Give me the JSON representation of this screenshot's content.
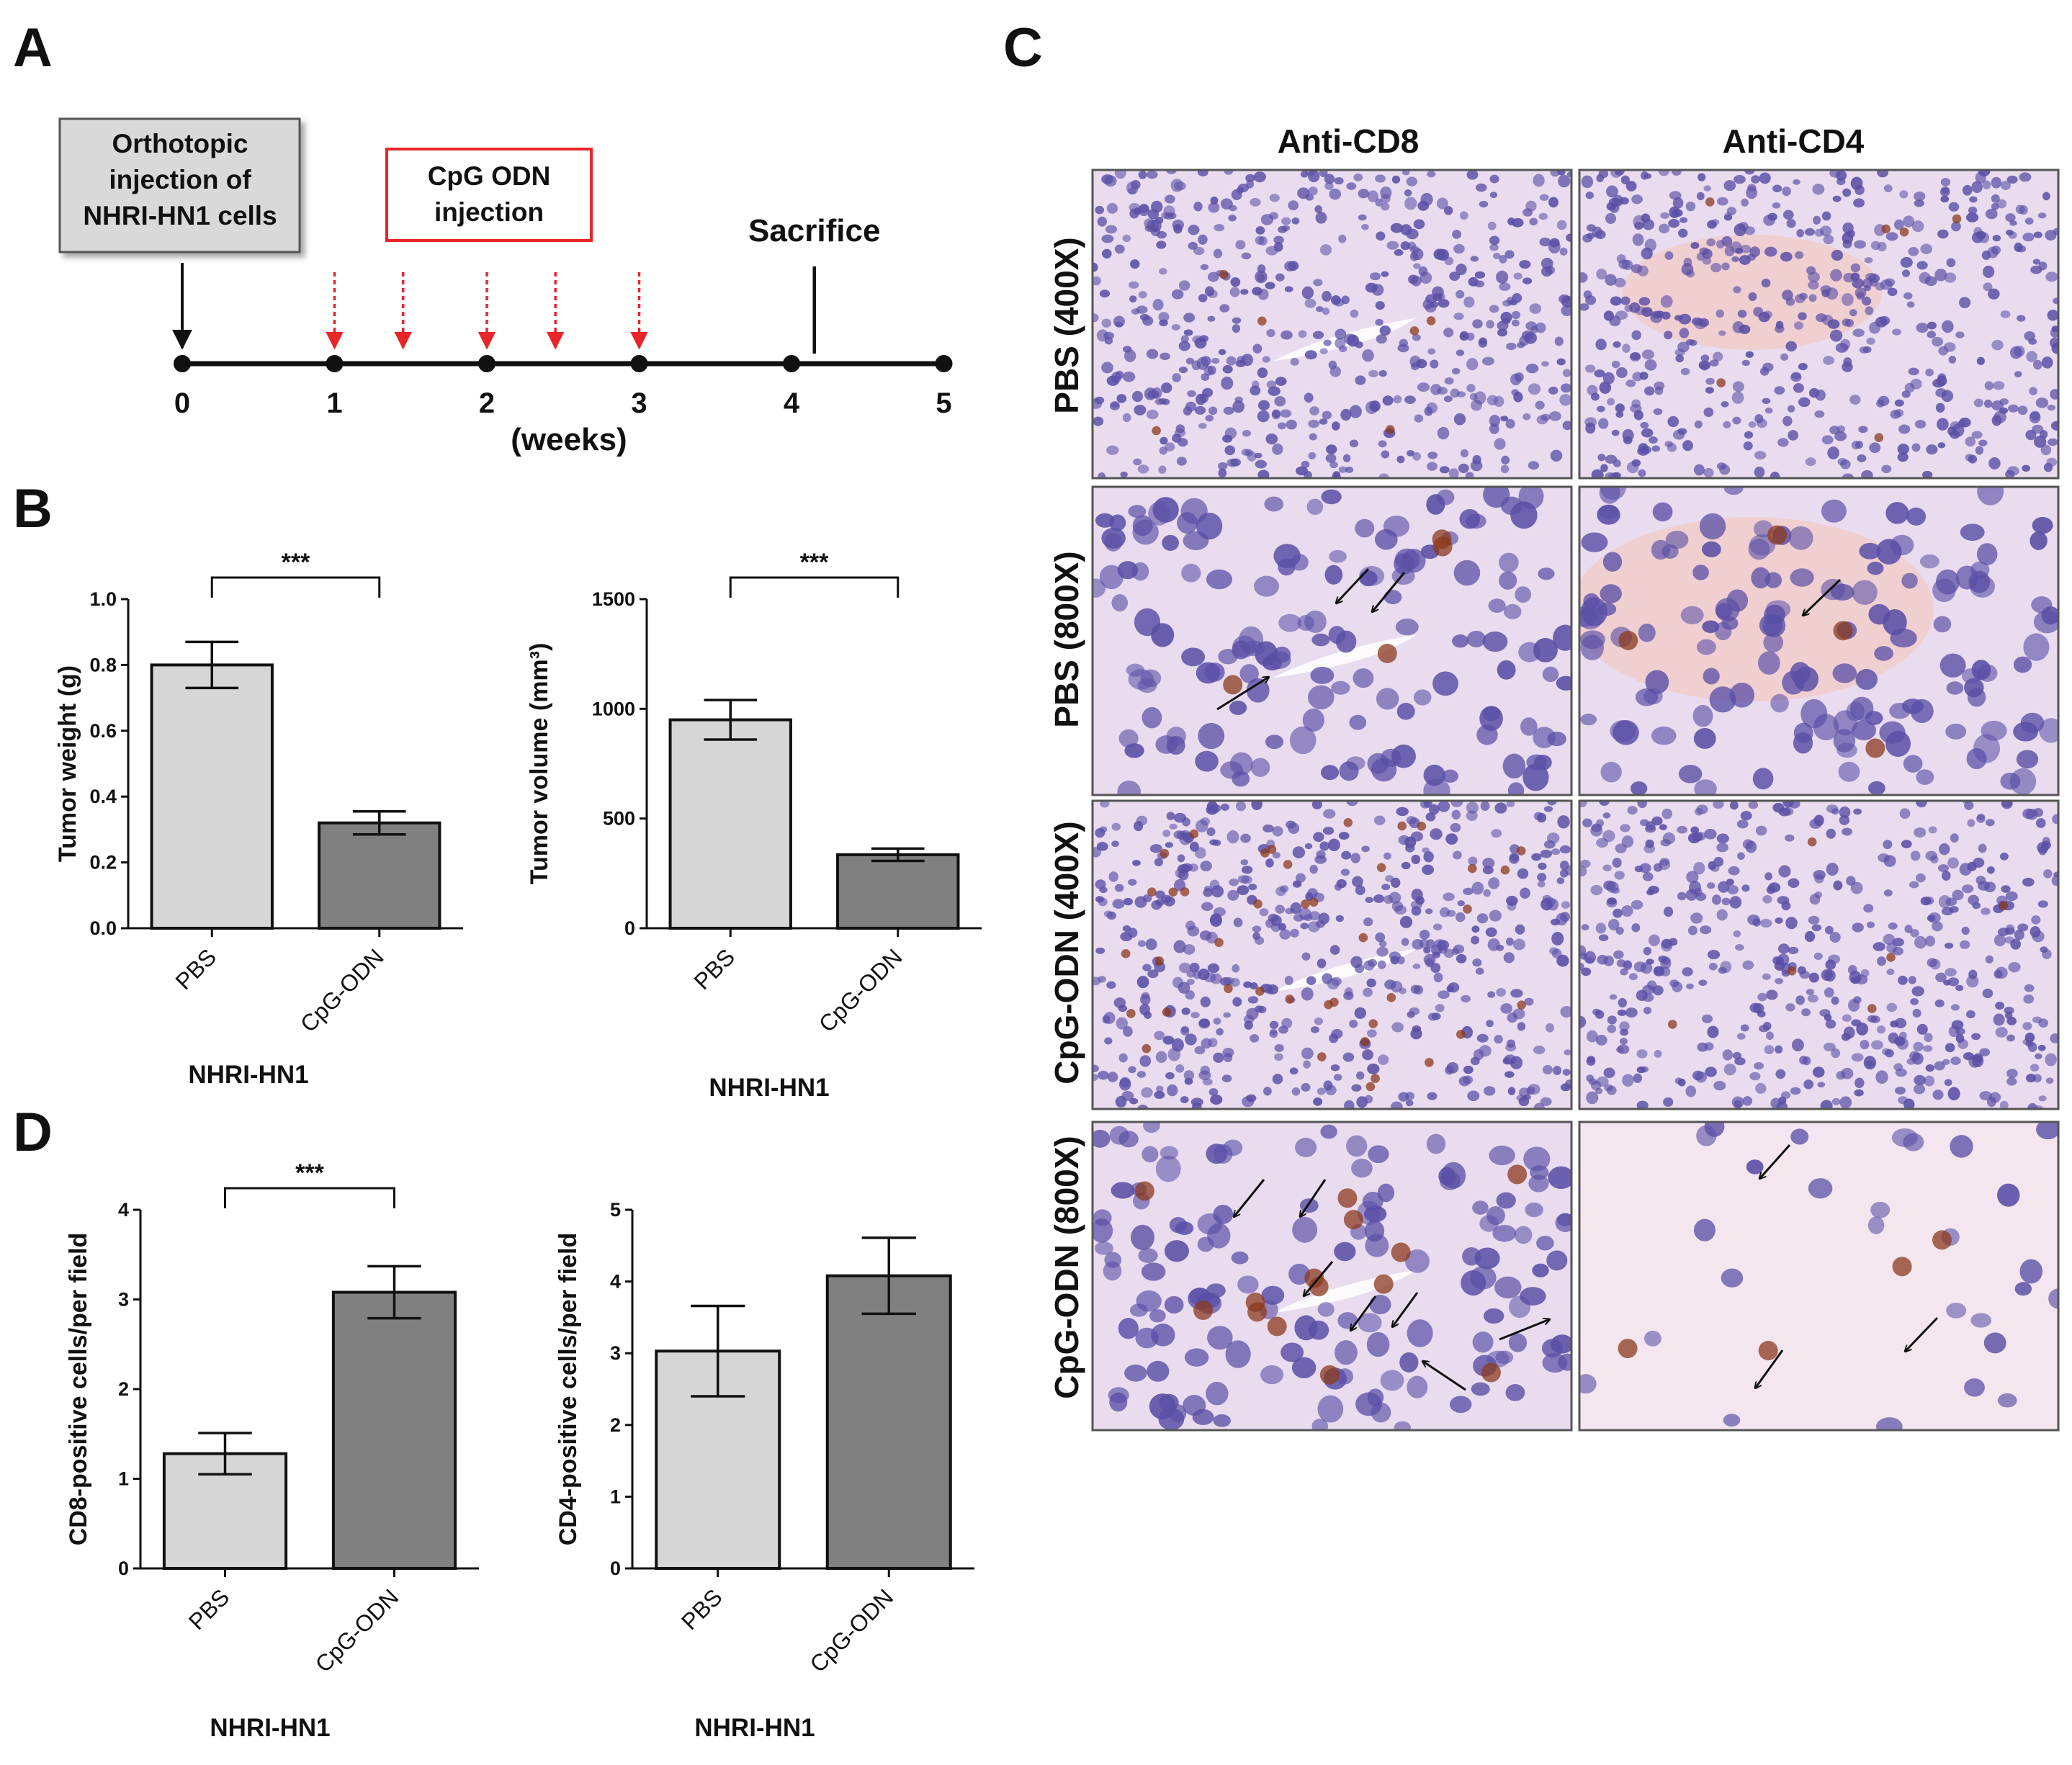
{
  "panels": {
    "A": {
      "letter": "A",
      "boxes": {
        "orthotopic": [
          "Orthotopic",
          "injection of",
          "NHRI-HN1 cells"
        ],
        "cpg": [
          "CpG ODN",
          "injection"
        ]
      },
      "sacrifice_label": "Sacrifice",
      "axis_label": "(weeks)",
      "ticks": [
        "0",
        "1",
        "2",
        "3",
        "4",
        "5"
      ],
      "tumor_injection_week": 0,
      "cpg_injection_weeks": [
        1,
        1.45,
        2,
        2.45,
        3
      ],
      "sacrifice_week": 4.15,
      "colors": {
        "cpg_arrow": "#e8262a",
        "cpg_box_border": "#e8262a",
        "box_fill": "#d9d9d9"
      }
    },
    "B": {
      "letter": "B"
    },
    "C": {
      "letter": "C",
      "columns": [
        "Anti-CD8",
        "Anti-CD4"
      ],
      "rows": [
        "PBS (400X)",
        "PBS (800X)",
        "CpG-ODN (400X)",
        "CpG-ODN (800X)"
      ],
      "colors": {
        "tissue_bg": "#e9dcef",
        "nuclei": "#5a4fa6",
        "stain": "#8b3a1e"
      }
    },
    "D": {
      "letter": "D"
    }
  },
  "chart_data": [
    {
      "panel": "B",
      "type": "bar",
      "categories": [
        "PBS",
        "CpG-ODN"
      ],
      "values": [
        0.8,
        0.32
      ],
      "errors": [
        0.07,
        0.035
      ],
      "ylabel": "Tumor weight (g)",
      "xlabel": "NHRI-HN1",
      "ylim": [
        0,
        1.0
      ],
      "yticks": [
        "0.0",
        "0.2",
        "0.4",
        "0.6",
        "0.8",
        "1.0"
      ],
      "significance": "***",
      "bar_colors": [
        "#d6d6d6",
        "#808080"
      ]
    },
    {
      "panel": "B",
      "type": "bar",
      "categories": [
        "PBS",
        "CpG-ODN"
      ],
      "values": [
        950,
        335
      ],
      "errors": [
        90,
        28
      ],
      "ylabel": "Tumor volume (mm³)",
      "xlabel": "NHRI-HN1",
      "ylim": [
        0,
        1500
      ],
      "yticks": [
        "0",
        "500",
        "1000",
        "1500"
      ],
      "significance": "***",
      "bar_colors": [
        "#d6d6d6",
        "#808080"
      ]
    },
    {
      "panel": "D",
      "type": "bar",
      "categories": [
        "PBS",
        "CpG-ODN"
      ],
      "values": [
        1.28,
        3.08
      ],
      "errors": [
        0.23,
        0.29
      ],
      "ylabel": "CD8-positive cells/per field",
      "xlabel": "NHRI-HN1",
      "ylim": [
        0,
        4
      ],
      "yticks": [
        "0",
        "1",
        "2",
        "3",
        "4"
      ],
      "significance": "***",
      "bar_colors": [
        "#d6d6d6",
        "#808080"
      ]
    },
    {
      "panel": "D",
      "type": "bar",
      "categories": [
        "PBS",
        "CpG-ODN"
      ],
      "values": [
        3.03,
        4.08
      ],
      "errors": [
        0.63,
        0.53
      ],
      "ylabel": "CD4-positive cells/per field",
      "xlabel": "NHRI-HN1",
      "ylim": [
        0,
        5
      ],
      "yticks": [
        "0",
        "1",
        "2",
        "3",
        "4",
        "5"
      ],
      "significance": "",
      "bar_colors": [
        "#d6d6d6",
        "#808080"
      ]
    }
  ]
}
